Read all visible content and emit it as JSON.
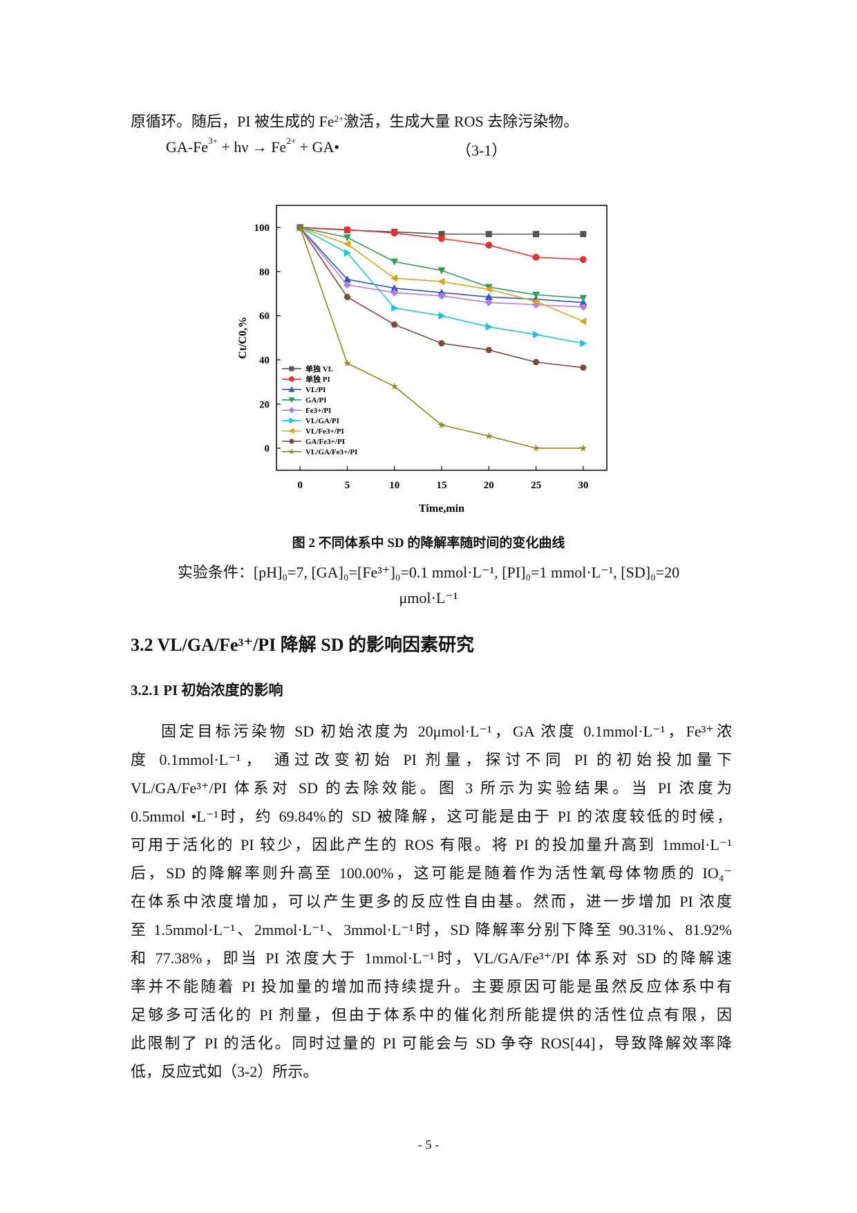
{
  "intro_line": "原循环。随后，PI 被生成的 Fe",
  "intro_sup": "2+",
  "intro_line_rest": "激活，生成大量 ROS 去除污染物。",
  "equation": {
    "lhs": "GA-Fe",
    "lhs_sup": "3+",
    "mid": " + hν → Fe",
    "mid_sup": "2+",
    "rhs": " + GA•",
    "number": "（3-1）"
  },
  "chart_data": {
    "type": "line",
    "xlabel": "Time,min",
    "ylabel": "Ct/C0,%",
    "xlim": [
      -2.5,
      32.5
    ],
    "ylim": [
      -10,
      110
    ],
    "x_ticks": [
      0,
      5,
      10,
      15,
      20,
      25,
      30
    ],
    "y_ticks": [
      0,
      20,
      40,
      60,
      80,
      100
    ],
    "x": [
      0,
      5,
      10,
      15,
      20,
      25,
      30
    ],
    "legend_position": "bottom-left",
    "series": [
      {
        "name": "单独 VL",
        "color": "#555555",
        "marker": "square",
        "values": [
          100,
          98.8,
          98,
          97,
          97,
          97,
          97
        ]
      },
      {
        "name": "单独 PI",
        "color": "#e8312f",
        "marker": "circle",
        "values": [
          100,
          99,
          97.5,
          95,
          92,
          86.5,
          85.5
        ]
      },
      {
        "name": "VL/PI",
        "color": "#2a53c4",
        "marker": "triangle-up",
        "values": [
          100,
          76.5,
          72.5,
          70.5,
          68.5,
          67.5,
          66
        ]
      },
      {
        "name": "GA/PI",
        "color": "#2e9e57",
        "marker": "triangle-down",
        "values": [
          100,
          95.5,
          84.5,
          80.5,
          73,
          69.5,
          68
        ]
      },
      {
        "name": "Fe3+/PI",
        "color": "#b57be0",
        "marker": "diamond",
        "values": [
          100,
          74,
          70.5,
          69,
          66,
          65,
          64
        ]
      },
      {
        "name": "VL/GA/PI",
        "color": "#19c6d8",
        "marker": "triangle-right",
        "values": [
          100,
          88.5,
          63.5,
          60,
          55,
          51.5,
          47.5
        ]
      },
      {
        "name": "VL/Fe3+/PI",
        "color": "#d9a41c",
        "marker": "triangle-left",
        "values": [
          100,
          92.5,
          77,
          75.5,
          72,
          66.5,
          57.5
        ]
      },
      {
        "name": "GA/Fe3+/PI",
        "color": "#7a4a45",
        "marker": "hexagon",
        "values": [
          100,
          68.5,
          56,
          47.5,
          44.5,
          39,
          36.5
        ]
      },
      {
        "name": "VL/GA/Fe3+/PI",
        "color": "#8b8a16",
        "marker": "star",
        "values": [
          100,
          38.5,
          28,
          10.5,
          5.5,
          0,
          0
        ]
      }
    ]
  },
  "figure_caption": "图  2 不同体系中 SD 的降解率随时间的变化曲线",
  "conditions_line1": "实验条件：[pH]₀=7, [GA]₀=[Fe³⁺]₀=0.1 mmol·L⁻¹, [PI]₀=1 mmol·L⁻¹, [SD]₀=20",
  "conditions_line2": "μmol·L⁻¹",
  "section_heading": "3.2 VL/GA/Fe³⁺/PI 降解 SD 的影响因素研究",
  "subsection_heading": "3.2.1 PI 初始浓度的影响",
  "paragraph_lines": [
    "固定目标污染物 SD 初始浓度为 20μmol·L⁻¹，GA 浓度 0.1mmol·L⁻¹，Fe³⁺浓",
    "度 0.1mmol·L⁻¹， 通过改变初始 PI 剂量，探讨不同 PI 的初始投加量下",
    "VL/GA/Fe³⁺/PI 体系对 SD 的去除效能。图 3 所示为实验结果。当 PI 浓度为",
    "0.5mmol •L⁻¹时，约 69.84%的 SD 被降解，这可能是由于 PI 的浓度较低的时候，",
    "可用于活化的 PI 较少，因此产生的 ROS 有限。将 PI 的投加量升高到 1mmol·L⁻¹",
    "后，SD 的降解率则升高至 100.00%，这可能是随着作为活性氧母体物质的 IO₄⁻",
    "在体系中浓度增加，可以产生更多的反应性自由基。然而，进一步增加 PI 浓度",
    "至 1.5mmol·L⁻¹、2mmol·L⁻¹、3mmol·L⁻¹时，SD 降解率分别下降至 90.31%、81.92%",
    "和 77.38%，即当 PI 浓度大于 1mmol·L⁻¹时，VL/GA/Fe³⁺/PI 体系对 SD 的降解速",
    "率并不能随着 PI 投加量的增加而持续提升。主要原因可能是虽然反应体系中有",
    "足够多可活化的 PI 剂量，但由于体系中的催化剂所能提供的活性位点有限，因",
    "此限制了 PI 的活化。同时过量的 PI 可能会与 SD 争夺 ROS[44]，导致降解效率降",
    "低，反应式如（3-2）所示。"
  ],
  "page_number": "- 5 -"
}
